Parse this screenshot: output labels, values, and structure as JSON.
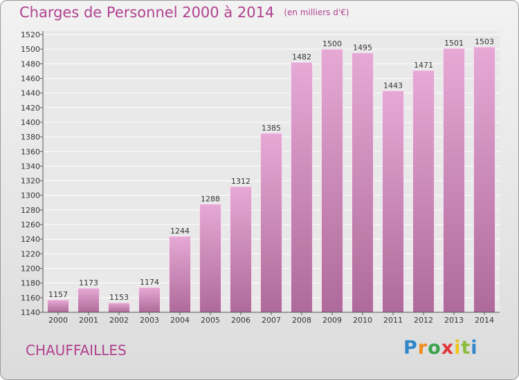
{
  "title": "Charges de Personnel 2000 à 2014",
  "subtitle": "(en milliers d'€)",
  "place": "CHAUFFAILLES",
  "logo": {
    "letters": [
      "P",
      "r",
      "o",
      "x",
      "i",
      "t",
      "i"
    ],
    "colors": [
      "#2f86c9",
      "#f08a1c",
      "#3aa44b",
      "#e2353b",
      "#f0c419",
      "#8dbd3c",
      "#2f86c9"
    ]
  },
  "colors": {
    "bar_top": "#e6a9d6",
    "bar_bottom": "#ae6a9a",
    "title": "#b0418f"
  },
  "chart_data": {
    "type": "bar",
    "categories": [
      "2000",
      "2001",
      "2002",
      "2003",
      "2004",
      "2005",
      "2006",
      "2007",
      "2008",
      "2009",
      "2010",
      "2011",
      "2012",
      "2013",
      "2014"
    ],
    "values": [
      1157,
      1173,
      1153,
      1174,
      1244,
      1288,
      1312,
      1385,
      1482,
      1500,
      1495,
      1443,
      1471,
      1501,
      1503
    ],
    "ylim": [
      1140,
      1520
    ],
    "yticks": [
      1140,
      1160,
      1180,
      1200,
      1220,
      1240,
      1260,
      1280,
      1300,
      1320,
      1340,
      1360,
      1380,
      1400,
      1420,
      1440,
      1460,
      1480,
      1500,
      1520
    ],
    "grid": true
  }
}
